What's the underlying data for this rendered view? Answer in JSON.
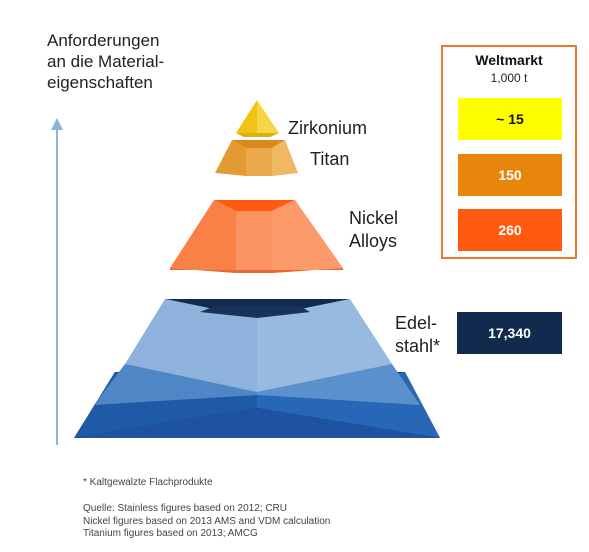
{
  "axis_label": [
    "Anforderungen",
    "an die Material-",
    "eigenschaften"
  ],
  "layers": {
    "zirkonium": "Zirkonium",
    "titan": "Titan",
    "nickel": [
      "Nickel",
      "Alloys"
    ],
    "edelstahl": [
      "Edel-",
      "stahl*"
    ]
  },
  "legend": {
    "title": "Weltmarkt",
    "unit": "1,000 t",
    "items": [
      {
        "value": "~ 15",
        "color": "#ffff00",
        "text_color": "#111111"
      },
      {
        "value": "150",
        "color": "#e8860c",
        "text_color": "#ffffff"
      },
      {
        "value": "260",
        "color": "#ff5a10",
        "text_color": "#ffffff"
      }
    ]
  },
  "stainless_value": "17,340",
  "footnote": "* Kaltgewalzte Flachprodukte",
  "sources": [
    "Quelle: Stainless figures based on 2012; CRU",
    "Nickel figures based on 2013 AMS and VDM calculation",
    "Titanium figures based on 2013; AMCG"
  ],
  "colors": {
    "zirkonium": "#f3cc22",
    "titan": "#e8a43a",
    "nickel": "#fa8a55",
    "stainless_light": "#8fb2dc",
    "stainless_mid": "#4f86c6",
    "stainless_dark": "#1f5aa6",
    "stainless_navy": "#112a4d",
    "legend_border": "#f0772d",
    "arrow": "#8fb2dc"
  }
}
